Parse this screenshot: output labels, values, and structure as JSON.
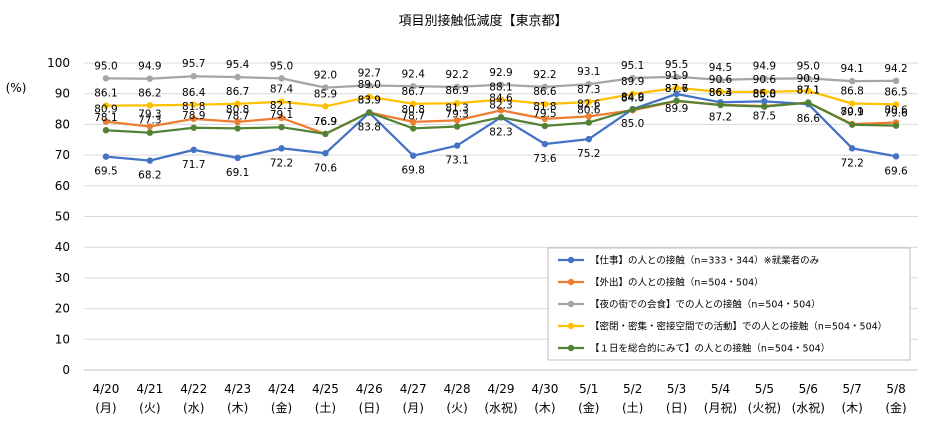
{
  "chart_data": {
    "type": "line",
    "title": "項目別接触低減度【東京都】",
    "ylabel": "(%)",
    "xlabel": "",
    "ylim": [
      0,
      100
    ],
    "yticks": [
      0,
      10,
      20,
      30,
      40,
      50,
      60,
      70,
      80,
      90,
      100
    ],
    "grid": "horizontal",
    "legend_position": "bottom-right",
    "categories": [
      {
        "date": "4/20",
        "day": "(月)"
      },
      {
        "date": "4/21",
        "day": "(火)"
      },
      {
        "date": "4/22",
        "day": "(水)"
      },
      {
        "date": "4/23",
        "day": "(木)"
      },
      {
        "date": "4/24",
        "day": "(金)"
      },
      {
        "date": "4/25",
        "day": "(土)"
      },
      {
        "date": "4/26",
        "day": "(日)"
      },
      {
        "date": "4/27",
        "day": "(月)"
      },
      {
        "date": "4/28",
        "day": "(火)"
      },
      {
        "date": "4/29",
        "day": "(水祝)"
      },
      {
        "date": "4/30",
        "day": "(木)"
      },
      {
        "date": "5/1",
        "day": "(金)"
      },
      {
        "date": "5/2",
        "day": "(土)"
      },
      {
        "date": "5/3",
        "day": "(日)"
      },
      {
        "date": "5/4",
        "day": "(月祝)"
      },
      {
        "date": "5/5",
        "day": "(火祝)"
      },
      {
        "date": "5/6",
        "day": "(水祝)"
      },
      {
        "date": "5/7",
        "day": "(木)"
      },
      {
        "date": "5/8",
        "day": "(金)"
      }
    ],
    "series": [
      {
        "name": "【仕事】の人との接触（n=333・344）※就業者のみ",
        "color": "#4472C4",
        "values": [
          69.5,
          68.2,
          71.7,
          69.1,
          72.2,
          70.6,
          83.8,
          69.8,
          73.1,
          82.3,
          73.6,
          75.2,
          85.0,
          89.9,
          87.2,
          87.5,
          86.6,
          72.2,
          69.6
        ]
      },
      {
        "name": "【外出】の人との接触（n=504・504）",
        "color": "#ED7D31",
        "values": [
          80.9,
          79.3,
          81.8,
          80.8,
          82.1,
          76.9,
          83.9,
          80.8,
          81.3,
          84.6,
          81.8,
          82.6,
          84.6,
          87.6,
          86.4,
          86.0,
          87.1,
          80.1,
          80.6
        ]
      },
      {
        "name": "【夜の街での会食】での人との接触（n=504・504）",
        "color": "#A5A5A5",
        "values": [
          95.0,
          94.9,
          95.7,
          95.4,
          95.0,
          92.0,
          92.7,
          92.4,
          92.2,
          92.9,
          92.2,
          93.1,
          95.1,
          95.5,
          94.5,
          94.9,
          95.0,
          94.1,
          94.2
        ]
      },
      {
        "name": "【密閉・密集・密接空間での活動】での人との接触（n=504・504）",
        "color": "#FFC000",
        "values": [
          86.1,
          86.2,
          86.4,
          86.7,
          87.4,
          85.9,
          89.0,
          86.7,
          86.9,
          88.1,
          86.6,
          87.3,
          89.9,
          91.9,
          90.6,
          90.6,
          90.9,
          86.8,
          86.5
        ]
      },
      {
        "name": "【１日を総合的にみて】の人との接触（n=504・504）",
        "color": "#548235",
        "values": [
          78.1,
          77.3,
          78.9,
          78.7,
          79.1,
          76.9,
          83.9,
          78.7,
          79.3,
          82.3,
          79.5,
          80.6,
          84.9,
          87.7,
          86.3,
          85.8,
          87.1,
          79.9,
          79.6
        ]
      }
    ]
  }
}
